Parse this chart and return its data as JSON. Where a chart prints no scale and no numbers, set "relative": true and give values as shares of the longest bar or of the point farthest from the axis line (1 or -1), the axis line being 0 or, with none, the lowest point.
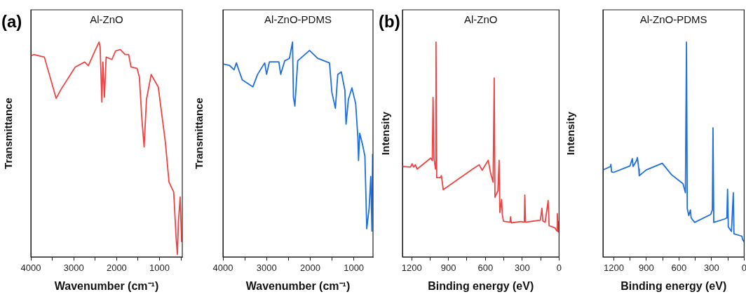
{
  "chart_data": [
    {
      "type": "line",
      "title": "Al-ZnO",
      "xlabel": "Wavenumber (cm⁻¹)",
      "ylabel": "Transmittance",
      "annotations": [
        "(a)"
      ],
      "relative": true,
      "tick_labels": "x",
      "grid": false,
      "legend": false,
      "marker": "none",
      "line_style": "solid",
      "xlim": [
        4000,
        470
      ],
      "xticks": [
        4000,
        {
          "value": 3500,
          "label": null
        },
        3000,
        {
          "value": 2500,
          "label": null
        },
        2000,
        {
          "value": 1500,
          "label": null
        },
        1000,
        {
          "value": 500,
          "label": null
        }
      ],
      "series": [
        {
          "color": "#f04444",
          "x": [
            4000,
            3935,
            3685,
            3410,
            3300,
            2965,
            2745,
            2660,
            2520,
            2410,
            2385,
            2345,
            2320,
            2285,
            2245,
            2110,
            2025,
            1915,
            1805,
            1720,
            1665,
            1525,
            1470,
            1415,
            1360,
            1305,
            1195,
            1030,
            865,
            780,
            670,
            615,
            585,
            560,
            520,
            485
          ],
          "values": [
            0.936,
            0.942,
            0.93,
            0.738,
            0.779,
            0.884,
            0.907,
            0.89,
            0.953,
            1.0,
            0.977,
            0.721,
            0.907,
            0.744,
            0.93,
            0.919,
            0.959,
            0.965,
            0.942,
            0.942,
            0.884,
            0.878,
            0.837,
            0.651,
            0.512,
            0.733,
            0.849,
            0.791,
            0.535,
            0.349,
            0.302,
            0.093,
            0.012,
            0.163,
            0.279,
            0.07
          ]
        }
      ]
    },
    {
      "type": "line",
      "title": "Al-ZnO-PDMS",
      "xlabel": "Wavenumber (cm⁻¹)",
      "ylabel": "Transmittance",
      "relative": true,
      "tick_labels": "x",
      "grid": false,
      "legend": false,
      "marker": "none",
      "line_style": "solid",
      "xlim": [
        4000,
        560
      ],
      "xticks": [
        4000,
        {
          "value": 3500,
          "label": null
        },
        3000,
        {
          "value": 2500,
          "label": null
        },
        2000,
        {
          "value": 1500,
          "label": null
        },
        1000
      ],
      "series": [
        {
          "color": "#1f6fe0",
          "x": [
            4000,
            3854,
            3746,
            3692,
            3638,
            3557,
            3314,
            3205,
            3043,
            3000,
            2935,
            2719,
            2676,
            2584,
            2476,
            2405,
            2384,
            2351,
            2286,
            2016,
            1827,
            1557,
            1503,
            1422,
            1368,
            1286,
            1205,
            1178,
            1124,
            1043,
            957,
            908,
            892,
            865,
            800,
            746,
            703,
            649,
            611,
            584,
            568
          ],
          "values": [
            0.898,
            0.892,
            0.871,
            0.903,
            0.871,
            0.824,
            0.792,
            0.85,
            0.903,
            0.85,
            0.908,
            0.908,
            0.85,
            0.913,
            0.924,
            1.0,
            0.744,
            0.702,
            0.913,
            0.961,
            0.924,
            0.903,
            0.766,
            0.692,
            0.85,
            0.861,
            0.776,
            0.618,
            0.734,
            0.787,
            0.713,
            0.56,
            0.449,
            0.576,
            0.523,
            0.47,
            0.132,
            0.227,
            0.375,
            0.121,
            0.48
          ]
        }
      ]
    },
    {
      "type": "line",
      "title": "Al-ZnO",
      "xlabel": "Binding energy (eV)",
      "ylabel": "Intensity",
      "annotations": [
        "(b)"
      ],
      "relative": true,
      "tick_labels": "x",
      "grid": false,
      "legend": false,
      "marker": "none",
      "line_style": "solid",
      "xlim": [
        1275,
        0
      ],
      "xticks": [
        1200,
        {
          "value": 1050,
          "label": null
        },
        900,
        {
          "value": 750,
          "label": null
        },
        600,
        {
          "value": 450,
          "label": null
        },
        300,
        {
          "value": 150,
          "label": null
        },
        0
      ],
      "series": [
        {
          "color": "#f04444",
          "x": [
            1275,
            1209,
            1196,
            1184,
            1170,
            1156,
            1045,
            1032,
            1026,
            1018,
            1006,
            1002,
            996,
            966,
            958,
            943,
            705,
            650,
            626,
            577,
            557,
            537,
            528,
            522,
            498,
            488,
            482,
            468,
            462,
            453,
            399,
            395,
            389,
            310,
            283,
            279,
            273,
            152,
            140,
            132,
            113,
            89,
            81,
            34,
            18,
            14,
            6,
            0
          ],
          "values": [
            0.421,
            0.419,
            0.434,
            0.419,
            0.429,
            0.409,
            0.46,
            0.449,
            0.742,
            0.46,
            0.409,
            1.0,
            0.369,
            0.369,
            0.379,
            0.313,
            0.409,
            0.429,
            0.404,
            0.45,
            0.389,
            0.348,
            0.833,
            0.278,
            0.308,
            0.45,
            0.207,
            0.268,
            0.197,
            0.167,
            0.162,
            0.187,
            0.159,
            0.165,
            0.162,
            0.288,
            0.162,
            0.172,
            0.227,
            0.167,
            0.162,
            0.263,
            0.146,
            0.136,
            0.121,
            0.202,
            0.116,
            0.167
          ]
        }
      ]
    },
    {
      "type": "line",
      "title": "Al-ZnO-PDMS",
      "xlabel": "Binding energy (eV)",
      "ylabel": "Intensity",
      "relative": true,
      "tick_labels": "x",
      "grid": false,
      "legend": false,
      "marker": "none",
      "line_style": "solid",
      "xlim": [
        1300,
        0
      ],
      "xticks": [
        1200,
        {
          "value": 1050,
          "label": null
        },
        900,
        {
          "value": 750,
          "label": null
        },
        600,
        {
          "value": 450,
          "label": null
        },
        300,
        {
          "value": 150,
          "label": null
        },
        0
      ],
      "series": [
        {
          "color": "#1f6fe0",
          "x": [
            1300,
            1231,
            1227,
            1221,
            1200,
            1051,
            1030,
            1023,
            992,
            983,
            970,
            966,
            902,
            754,
            669,
            563,
            541,
            531,
            524,
            510,
            495,
            488,
            456,
            308,
            293,
            287,
            280,
            180,
            159,
            153,
            146,
            117,
            100,
            94,
            21,
            15,
            0
          ],
          "values": [
            0.405,
            0.421,
            0.431,
            0.396,
            0.394,
            0.424,
            0.458,
            0.421,
            0.447,
            0.463,
            0.41,
            0.378,
            0.405,
            0.436,
            0.383,
            0.341,
            0.299,
            1.0,
            0.225,
            0.193,
            0.219,
            0.182,
            0.161,
            0.198,
            0.219,
            0.601,
            0.161,
            0.177,
            0.182,
            0.315,
            0.14,
            0.119,
            0.299,
            0.108,
            0.097,
            0.082,
            0.071
          ]
        }
      ]
    }
  ]
}
